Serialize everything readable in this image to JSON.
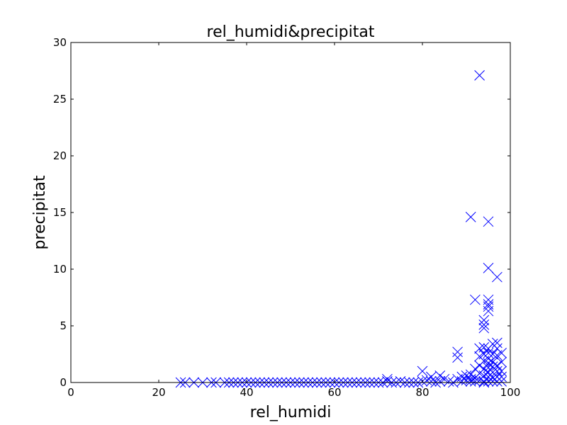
{
  "chart_data": {
    "type": "scatter",
    "title": "rel_humidi&precipitat",
    "xlabel": "rel_humidi",
    "ylabel": "precipitat",
    "xlim": [
      0,
      100
    ],
    "ylim": [
      0,
      30
    ],
    "xticks": [
      "0",
      "20",
      "40",
      "60",
      "80",
      "100"
    ],
    "yticks": [
      "0",
      "5",
      "10",
      "15",
      "20",
      "25",
      "30"
    ],
    "marker": "x",
    "color": "#0000ff",
    "grid": false,
    "x": [
      25,
      26,
      28,
      30,
      32,
      33,
      35,
      36,
      37,
      38,
      39,
      40,
      41,
      42,
      43,
      44,
      45,
      46,
      47,
      48,
      49,
      50,
      51,
      52,
      53,
      54,
      55,
      56,
      57,
      58,
      59,
      60,
      61,
      62,
      63,
      64,
      65,
      66,
      67,
      68,
      69,
      70,
      71,
      72,
      72,
      73,
      74,
      75,
      76,
      77,
      78,
      79,
      80,
      80,
      81,
      82,
      82,
      83,
      84,
      84,
      85,
      86,
      87,
      88,
      88,
      88,
      89,
      89,
      90,
      90,
      91,
      91,
      91,
      92,
      92,
      92,
      93,
      93,
      93,
      93,
      93,
      94,
      94,
      94,
      94,
      94,
      94,
      94,
      94,
      95,
      95,
      95,
      95,
      95,
      95,
      95,
      95,
      95,
      95,
      96,
      96,
      96,
      96,
      96,
      96,
      96,
      97,
      97,
      97,
      97,
      97,
      97,
      97,
      98,
      98,
      98,
      98,
      98,
      93,
      91,
      95,
      95,
      97,
      92,
      95,
      95,
      94,
      94
    ],
    "y": [
      0,
      0,
      0,
      0,
      0,
      0,
      0,
      0,
      0,
      0,
      0,
      0,
      0,
      0,
      0,
      0,
      0,
      0,
      0,
      0,
      0,
      0,
      0,
      0,
      0,
      0,
      0,
      0,
      0,
      0,
      0,
      0,
      0,
      0,
      0,
      0,
      0,
      0,
      0,
      0,
      0,
      0,
      0,
      0.1,
      0.3,
      0,
      0,
      0.1,
      0,
      0,
      0,
      0,
      1.0,
      0.1,
      0.2,
      0.5,
      0.1,
      0,
      0.6,
      0.1,
      0.3,
      0.1,
      0,
      2.2,
      2.7,
      0.3,
      0.5,
      0.1,
      0.2,
      0.6,
      0.3,
      0.7,
      0.1,
      1.2,
      0.4,
      0.1,
      3.0,
      2.3,
      1.5,
      0.8,
      0.2,
      5.5,
      4.8,
      3.1,
      2.5,
      1.9,
      1.2,
      0.6,
      0.1,
      6.7,
      6.3,
      3.0,
      2.6,
      2.1,
      1.7,
      1.3,
      0.9,
      0.5,
      0.1,
      3.4,
      2.5,
      1.8,
      1.4,
      0.9,
      0.4,
      0.1,
      3.5,
      3.0,
      2.4,
      1.5,
      1.0,
      0.5,
      0.1,
      2.6,
      1.8,
      1.0,
      0.5,
      0.1,
      27.1,
      14.6,
      14.2,
      10.1,
      9.3,
      7.3,
      7.3,
      6.9,
      5.1,
      0
    ]
  }
}
